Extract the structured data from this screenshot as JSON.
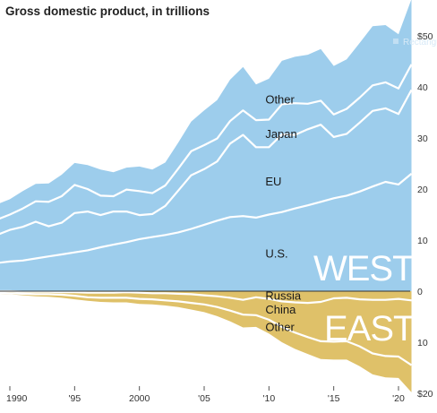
{
  "chart_data": {
    "type": "area",
    "title": "Gross domestic product, in trillions",
    "x": [
      1989,
      1990,
      1991,
      1992,
      1993,
      1994,
      1995,
      1996,
      1997,
      1998,
      1999,
      2000,
      2001,
      2002,
      2003,
      2004,
      2005,
      2006,
      2007,
      2008,
      2009,
      2010,
      2011,
      2012,
      2013,
      2014,
      2015,
      2016,
      2017,
      2018,
      2019,
      2020,
      2021
    ],
    "x_ticks": [
      {
        "value": 1990,
        "label": "1990"
      },
      {
        "value": 1995,
        "label": "'95"
      },
      {
        "value": 2000,
        "label": "2000"
      },
      {
        "value": 2005,
        "label": "'05"
      },
      {
        "value": 2010,
        "label": "'10"
      },
      {
        "value": 2015,
        "label": "'15"
      },
      {
        "value": 2020,
        "label": "'20"
      }
    ],
    "y_ticks_top": [
      {
        "value": 50,
        "label": "$50"
      },
      {
        "value": 40,
        "label": "40"
      },
      {
        "value": 30,
        "label": "30"
      },
      {
        "value": 20,
        "label": "20"
      },
      {
        "value": 10,
        "label": "10"
      },
      {
        "value": 0,
        "label": "0"
      }
    ],
    "y_ticks_bottom": [
      {
        "value": -10,
        "label": "10"
      },
      {
        "value": -20,
        "label": "$20"
      }
    ],
    "ylim": [
      -20,
      55
    ],
    "groups": [
      {
        "name": "WEST",
        "color": "#9dcdec",
        "stack": [
          "U.S.",
          "EU",
          "Japan",
          "Other"
        ],
        "cumulative": {
          "U.S.": [
            5.5,
            5.8,
            6.0,
            6.4,
            6.8,
            7.2,
            7.6,
            8.0,
            8.6,
            9.1,
            9.6,
            10.2,
            10.6,
            11.0,
            11.5,
            12.2,
            13.0,
            13.8,
            14.5,
            14.7,
            14.4,
            15.0,
            15.5,
            16.2,
            16.8,
            17.5,
            18.2,
            18.7,
            19.5,
            20.5,
            21.4,
            20.9,
            23.0
          ],
          "EU": [
            11.0,
            12.0,
            12.6,
            13.6,
            12.7,
            13.4,
            15.3,
            15.6,
            14.9,
            15.6,
            15.6,
            14.9,
            15.1,
            16.7,
            19.7,
            22.7,
            23.9,
            25.4,
            28.9,
            30.6,
            28.2,
            28.2,
            30.7,
            30.6,
            31.7,
            32.6,
            30.2,
            30.8,
            33.0,
            35.3,
            35.8,
            34.7,
            39.4
          ],
          "Japan": [
            14.0,
            15.0,
            16.2,
            17.6,
            17.5,
            18.6,
            20.8,
            20.0,
            18.7,
            18.6,
            19.9,
            19.6,
            19.2,
            20.7,
            24.0,
            27.4,
            28.6,
            29.9,
            33.3,
            35.4,
            33.5,
            33.6,
            36.6,
            36.8,
            36.7,
            37.3,
            34.6,
            35.7,
            37.9,
            40.3,
            40.9,
            39.7,
            44.4
          ],
          "Other": [
            17.0,
            18.0,
            19.6,
            21.0,
            21.1,
            22.8,
            25.1,
            24.7,
            23.8,
            23.3,
            24.2,
            24.4,
            23.8,
            25.2,
            29.1,
            33.2,
            35.4,
            37.4,
            41.4,
            43.9,
            40.5,
            41.6,
            45.1,
            45.9,
            46.3,
            47.4,
            44.1,
            45.4,
            48.6,
            51.9,
            52.1,
            50.3,
            57.2
          ]
        },
        "series_labels": [
          "Other",
          "Japan",
          "EU",
          "U.S."
        ]
      },
      {
        "name": "EAST",
        "color": "#dfc169",
        "stack": [
          "Russia",
          "China",
          "Other"
        ],
        "cumulative": {
          "Russia": [
            0.0,
            0.0,
            0.1,
            0.1,
            0.1,
            0.2,
            0.2,
            0.3,
            0.3,
            0.3,
            0.2,
            0.3,
            0.4,
            0.4,
            0.5,
            0.6,
            0.8,
            1.0,
            1.3,
            1.7,
            1.2,
            1.5,
            2.0,
            2.2,
            2.3,
            2.1,
            1.4,
            1.3,
            1.6,
            1.7,
            1.7,
            1.5,
            1.8
          ],
          "China": [
            0.3,
            0.4,
            0.5,
            0.6,
            0.6,
            0.7,
            0.9,
            1.2,
            1.3,
            1.3,
            1.3,
            1.5,
            1.6,
            1.8,
            2.0,
            2.3,
            2.6,
            3.1,
            3.8,
            4.6,
            4.7,
            5.6,
            7.0,
            8.1,
            9.0,
            9.8,
            9.9,
            9.8,
            10.8,
            12.2,
            12.7,
            12.8,
            14.5
          ],
          "Other": [
            0.5,
            0.6,
            0.8,
            1.0,
            1.1,
            1.3,
            1.6,
            1.9,
            2.1,
            2.2,
            2.2,
            2.5,
            2.6,
            2.8,
            3.1,
            3.6,
            4.1,
            4.9,
            5.9,
            7.1,
            7.0,
            8.3,
            10.0,
            11.3,
            12.3,
            13.3,
            13.4,
            13.4,
            14.7,
            16.3,
            16.9,
            17.0,
            19.8
          ]
        },
        "series_labels": [
          "Russia",
          "China",
          "Other"
        ]
      }
    ],
    "legend": {
      "text": "Rectangu"
    }
  }
}
